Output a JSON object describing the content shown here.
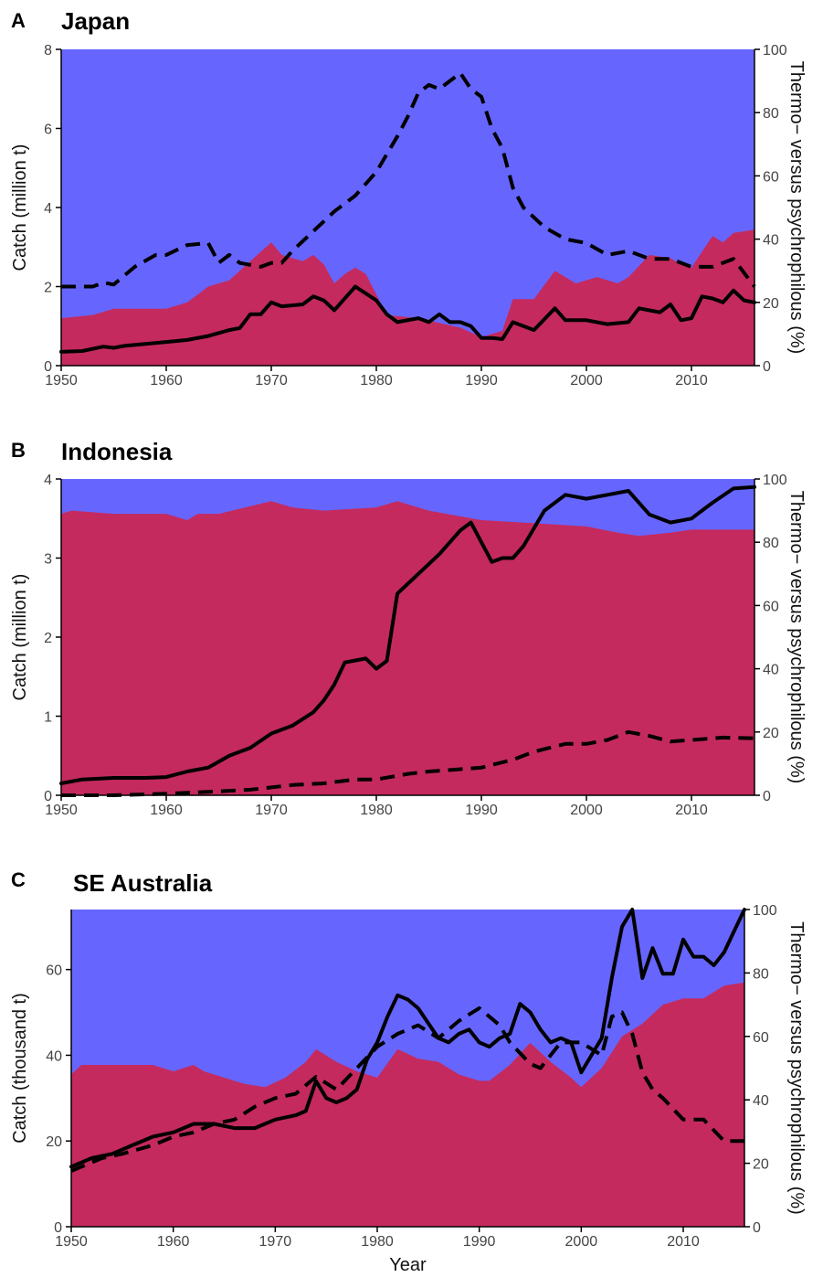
{
  "colors": {
    "thermo": "#c42a5e",
    "psychro": "#6666ff",
    "line": "#000000"
  },
  "chart_data": [
    {
      "type": "area",
      "panel_letter": "A",
      "title": "Japan",
      "ylabel": "Catch (million t)",
      "y2label": "Thermo− versus psychrophilous (%)",
      "xlim": [
        1950,
        2016
      ],
      "ylim": [
        0,
        8
      ],
      "y2lim": [
        0,
        100
      ],
      "x_ticks": [
        1950,
        1960,
        1970,
        1980,
        1990,
        2000,
        2010
      ],
      "y_ticks": [
        0,
        2,
        4,
        6,
        8
      ],
      "y2_ticks": [
        0,
        20,
        40,
        60,
        80,
        100
      ],
      "thermo_share": {
        "x": [
          1950,
          1953,
          1955,
          1958,
          1960,
          1962,
          1964,
          1966,
          1968,
          1970,
          1971,
          1973,
          1974,
          1975,
          1976,
          1977,
          1978,
          1979,
          1981,
          1984,
          1988,
          1990,
          1992,
          1993,
          1995,
          1997,
          1999,
          2001,
          2003,
          2004,
          2006,
          2008,
          2009,
          2010,
          2012,
          2013,
          2014,
          2016
        ],
        "values": [
          15,
          16,
          18,
          18,
          18,
          20,
          25,
          27,
          33,
          39,
          35,
          33,
          35,
          32,
          26,
          29,
          31,
          29,
          16,
          15,
          12,
          9,
          11,
          21,
          21,
          30,
          26,
          28,
          26,
          28,
          35,
          34,
          32,
          31,
          41,
          39,
          42,
          43
        ]
      },
      "series": [
        {
          "name": "solid",
          "x": [
            1950,
            1952,
            1954,
            1955,
            1956,
            1958,
            1960,
            1962,
            1964,
            1966,
            1967,
            1968,
            1969,
            1970,
            1971,
            1973,
            1974,
            1975,
            1976,
            1978,
            1980,
            1981,
            1982,
            1984,
            1985,
            1986,
            1987,
            1988,
            1989,
            1990,
            1991,
            1992,
            1993,
            1995,
            1997,
            1998,
            2000,
            2002,
            2004,
            2005,
            2007,
            2008,
            2009,
            2010,
            2011,
            2012,
            2013,
            2014,
            2015,
            2016
          ],
          "values": [
            0.35,
            0.37,
            0.48,
            0.45,
            0.5,
            0.55,
            0.6,
            0.65,
            0.75,
            0.9,
            0.95,
            1.3,
            1.3,
            1.6,
            1.5,
            1.55,
            1.75,
            1.65,
            1.4,
            2.0,
            1.65,
            1.3,
            1.1,
            1.2,
            1.1,
            1.3,
            1.1,
            1.1,
            1.0,
            0.7,
            0.7,
            0.67,
            1.1,
            0.9,
            1.45,
            1.15,
            1.15,
            1.05,
            1.1,
            1.45,
            1.35,
            1.55,
            1.15,
            1.2,
            1.75,
            1.7,
            1.6,
            1.9,
            1.65,
            1.6
          ]
        },
        {
          "name": "dashed",
          "x": [
            1950,
            1953,
            1954,
            1955,
            1957,
            1959,
            1960,
            1962,
            1964,
            1965,
            1966,
            1967,
            1969,
            1970,
            1971,
            1972,
            1974,
            1976,
            1978,
            1980,
            1982,
            1983,
            1984,
            1985,
            1986,
            1987,
            1988,
            1989,
            1990,
            1991,
            1992,
            1993,
            1994,
            1996,
            1998,
            2000,
            2002,
            2004,
            2006,
            2008,
            2010,
            2012,
            2014,
            2016
          ],
          "values": [
            2.0,
            2.0,
            2.1,
            2.05,
            2.5,
            2.8,
            2.8,
            3.05,
            3.1,
            2.6,
            2.8,
            2.6,
            2.5,
            2.6,
            2.6,
            2.9,
            3.4,
            3.9,
            4.3,
            4.9,
            5.8,
            6.3,
            6.9,
            7.1,
            7.0,
            7.2,
            7.4,
            7.0,
            6.8,
            6.0,
            5.5,
            4.5,
            4.0,
            3.5,
            3.2,
            3.1,
            2.8,
            2.9,
            2.7,
            2.7,
            2.5,
            2.5,
            2.7,
            2.0
          ]
        }
      ]
    },
    {
      "type": "area",
      "panel_letter": "B",
      "title": "Indonesia",
      "ylabel": "Catch (million t)",
      "y2label": "Thermo− versus psychrophilous (%)",
      "xlim": [
        1950,
        2016
      ],
      "ylim": [
        0,
        4
      ],
      "y2lim": [
        0,
        100
      ],
      "x_ticks": [
        1950,
        1960,
        1970,
        1980,
        1990,
        2000,
        2010
      ],
      "y_ticks": [
        0,
        1,
        2,
        3,
        4
      ],
      "y2_ticks": [
        0,
        20,
        40,
        60,
        80,
        100
      ],
      "thermo_share": {
        "x": [
          1950,
          1951,
          1955,
          1960,
          1962,
          1963,
          1965,
          1970,
          1972,
          1975,
          1980,
          1982,
          1985,
          1990,
          1995,
          2000,
          2003,
          2005,
          2008,
          2010,
          2016
        ],
        "values": [
          89,
          90,
          89,
          89,
          87,
          89,
          89,
          93,
          91,
          90,
          91,
          93,
          90,
          87,
          86,
          85,
          83,
          82,
          83,
          84,
          84
        ]
      },
      "series": [
        {
          "name": "solid",
          "x": [
            1950,
            1952,
            1955,
            1958,
            1960,
            1962,
            1964,
            1966,
            1968,
            1970,
            1972,
            1974,
            1975,
            1976,
            1977,
            1979,
            1980,
            1981,
            1982,
            1984,
            1986,
            1988,
            1989,
            1991,
            1992,
            1993,
            1994,
            1996,
            1998,
            2000,
            2002,
            2004,
            2006,
            2008,
            2010,
            2012,
            2014,
            2016
          ],
          "values": [
            0.15,
            0.2,
            0.22,
            0.22,
            0.23,
            0.3,
            0.35,
            0.5,
            0.6,
            0.78,
            0.88,
            1.05,
            1.2,
            1.4,
            1.68,
            1.73,
            1.6,
            1.7,
            2.55,
            2.8,
            3.05,
            3.35,
            3.45,
            2.95,
            3.0,
            3.0,
            3.15,
            3.6,
            3.8,
            3.75,
            3.8,
            3.85,
            3.55,
            3.45,
            3.5,
            3.7,
            3.88,
            3.9
          ]
        },
        {
          "name": "dashed",
          "x": [
            1950,
            1955,
            1960,
            1965,
            1968,
            1970,
            1972,
            1975,
            1978,
            1980,
            1983,
            1985,
            1988,
            1990,
            1993,
            1995,
            1998,
            2000,
            2002,
            2004,
            2006,
            2008,
            2010,
            2013,
            2016
          ],
          "values": [
            0.0,
            0.0,
            0.02,
            0.05,
            0.07,
            0.1,
            0.13,
            0.15,
            0.2,
            0.2,
            0.27,
            0.3,
            0.33,
            0.35,
            0.45,
            0.55,
            0.65,
            0.65,
            0.7,
            0.8,
            0.75,
            0.68,
            0.7,
            0.73,
            0.72
          ]
        }
      ]
    },
    {
      "type": "area",
      "panel_letter": "C",
      "title": "SE Australia",
      "ylabel": "Catch (thousand t)",
      "y2label": "Thermo− versus psychrophilous (%)",
      "xlabel": "Year",
      "xlim": [
        1950,
        2016
      ],
      "ylim": [
        0,
        74
      ],
      "y2lim": [
        0,
        100
      ],
      "x_ticks": [
        1950,
        1960,
        1970,
        1980,
        1990,
        2000,
        2010
      ],
      "y_ticks": [
        0,
        20,
        40,
        60
      ],
      "y2_ticks": [
        0,
        20,
        40,
        60,
        80,
        100
      ],
      "thermo_share": {
        "x": [
          1950,
          1951,
          1955,
          1958,
          1960,
          1962,
          1963,
          1966,
          1967,
          1969,
          1971,
          1973,
          1974,
          1976,
          1978,
          1980,
          1982,
          1984,
          1986,
          1988,
          1990,
          1991,
          1993,
          1995,
          1997,
          1999,
          2000,
          2002,
          2004,
          2006,
          2008,
          2010,
          2012,
          2014,
          2016
        ],
        "values": [
          48,
          51,
          51,
          51,
          49,
          51,
          49,
          46,
          45,
          44,
          47,
          52,
          56,
          52,
          49,
          47,
          56,
          53,
          52,
          48,
          46,
          46,
          51,
          58,
          52,
          47,
          44,
          50,
          60,
          64,
          70,
          72,
          72,
          76,
          77
        ]
      },
      "series": [
        {
          "name": "solid",
          "x": [
            1950,
            1952,
            1954,
            1956,
            1958,
            1960,
            1962,
            1964,
            1966,
            1968,
            1970,
            1972,
            1973,
            1974,
            1975,
            1976,
            1977,
            1978,
            1979,
            1980,
            1981,
            1982,
            1983,
            1984,
            1986,
            1987,
            1988,
            1989,
            1990,
            1991,
            1992,
            1993,
            1994,
            1995,
            1996,
            1997,
            1998,
            1999,
            2000,
            2002,
            2003,
            2004,
            2005,
            2006,
            2007,
            2008,
            2009,
            2010,
            2011,
            2012,
            2013,
            2014,
            2015,
            2016
          ],
          "values": [
            14,
            16,
            17,
            19,
            21,
            22,
            24,
            24,
            23,
            23,
            25,
            26,
            27,
            34,
            30,
            29,
            30,
            32,
            39,
            43,
            49,
            54,
            53,
            51,
            44,
            43,
            45,
            46,
            43,
            42,
            44,
            45,
            52,
            50,
            46,
            43,
            44,
            43,
            36,
            44,
            58,
            70,
            74,
            58,
            65,
            59,
            59,
            67,
            63,
            63,
            61,
            64,
            69,
            74
          ]
        },
        {
          "name": "dashed",
          "x": [
            1950,
            1953,
            1955,
            1958,
            1960,
            1962,
            1964,
            1966,
            1968,
            1970,
            1972,
            1974,
            1976,
            1978,
            1980,
            1982,
            1984,
            1986,
            1988,
            1990,
            1991,
            1992,
            1993,
            1995,
            1996,
            1997,
            1998,
            2000,
            2002,
            2003,
            2004,
            2005,
            2006,
            2007,
            2008,
            2010,
            2012,
            2014,
            2016
          ],
          "values": [
            13,
            16,
            17,
            19,
            21,
            22,
            24,
            25,
            28,
            30,
            31,
            35,
            32,
            37,
            42,
            45,
            47,
            44,
            48,
            51,
            49,
            47,
            43,
            38,
            37,
            40,
            43,
            43,
            40,
            49,
            50,
            45,
            36,
            32,
            30,
            25,
            25,
            20,
            20
          ]
        }
      ]
    }
  ]
}
